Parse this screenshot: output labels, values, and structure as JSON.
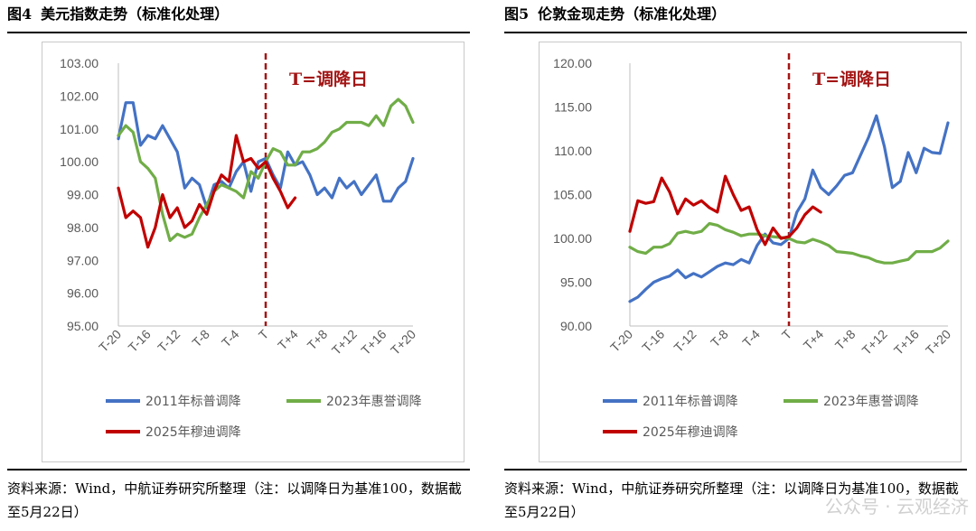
{
  "figures": [
    {
      "title_num": "图4",
      "title_text": "美元指数走势（标准化处理）",
      "source": "资料来源：Wind，中航证券研究所整理（注：以调降日为基准100，数据截至5月22日）",
      "chart_data": {
        "type": "line",
        "ylim": [
          95,
          103
        ],
        "yticks": [
          "95.00",
          "96.00",
          "97.00",
          "98.00",
          "99.00",
          "100.00",
          "101.00",
          "102.00",
          "103.00"
        ],
        "xticks": [
          "T-20",
          "T-16",
          "T-12",
          "T-8",
          "T-4",
          "T",
          "T+4",
          "T+8",
          "T+12",
          "T+16",
          "T+20"
        ],
        "x_range": [
          -20,
          20
        ],
        "vline": {
          "x": 0,
          "label": "T=调降日",
          "color": "#a31515"
        },
        "grid": false,
        "legend_position": "bottom",
        "series": [
          {
            "name": "2011年标普调降",
            "color": "#4472c4",
            "x_start": -20,
            "values": [
              100.7,
              101.8,
              101.8,
              100.5,
              100.8,
              100.7,
              101.1,
              100.7,
              100.3,
              99.2,
              99.5,
              99.3,
              98.6,
              99.3,
              99.4,
              99.2,
              99.7,
              100.0,
              99.1,
              100.0,
              100.1,
              99.6,
              99.2,
              100.3,
              99.9,
              100.0,
              99.6,
              99.0,
              99.2,
              98.9,
              99.5,
              99.2,
              99.4,
              99.0,
              99.3,
              99.6,
              98.8,
              98.8,
              99.2,
              99.4,
              100.1
            ]
          },
          {
            "name": "2023年惠誉调降",
            "color": "#70ad47",
            "x_start": -20,
            "values": [
              100.8,
              101.1,
              100.9,
              100.0,
              99.8,
              99.5,
              98.4,
              97.6,
              97.8,
              97.7,
              97.8,
              98.3,
              98.7,
              99.1,
              99.3,
              99.2,
              99.1,
              98.9,
              99.7,
              99.5,
              100.0,
              100.4,
              100.3,
              99.9,
              99.9,
              100.3,
              100.3,
              100.4,
              100.6,
              100.9,
              101.0,
              101.2,
              101.2,
              101.2,
              101.1,
              101.4,
              101.1,
              101.7,
              101.9,
              101.7,
              101.2
            ]
          },
          {
            "name": "2025年穆迪调降",
            "color": "#c00000",
            "x_start": -20,
            "values": [
              99.2,
              98.3,
              98.5,
              98.3,
              97.4,
              98.0,
              99.0,
              98.3,
              98.6,
              98.0,
              98.2,
              98.7,
              98.4,
              99.1,
              99.6,
              99.4,
              100.8,
              100.0,
              100.1,
              99.8,
              100.0,
              99.5,
              99.1,
              98.6,
              98.9
            ]
          }
        ]
      }
    },
    {
      "title_num": "图5",
      "title_text": "伦敦金现走势（标准化处理）",
      "source": "资料来源：Wind，中航证券研究所整理（注：以调降日为基准100，数据截至5月22日）",
      "watermark": "公众号 · 云观经济",
      "chart_data": {
        "type": "line",
        "ylim": [
          90,
          120
        ],
        "yticks": [
          "90.00",
          "95.00",
          "100.00",
          "105.00",
          "110.00",
          "115.00",
          "120.00"
        ],
        "xticks": [
          "T-20",
          "T-16",
          "T-12",
          "T-8",
          "T-4",
          "T",
          "T+4",
          "T+8",
          "T+12",
          "T+16",
          "T+20"
        ],
        "x_range": [
          -20,
          20
        ],
        "vline": {
          "x": 0,
          "label": "T=调降日",
          "color": "#a31515"
        },
        "grid": false,
        "legend_position": "bottom",
        "series": [
          {
            "name": "2011年标普调降",
            "color": "#4472c4",
            "x_start": -20,
            "values": [
              92.8,
              93.3,
              94.2,
              95.0,
              95.4,
              95.7,
              96.4,
              95.5,
              96.0,
              95.6,
              96.2,
              96.8,
              97.2,
              97.0,
              97.6,
              97.2,
              99.2,
              100.5,
              99.5,
              99.3,
              100.0,
              103.0,
              104.5,
              107.8,
              105.8,
              105.0,
              106.0,
              107.2,
              107.5,
              109.5,
              111.5,
              114.0,
              110.5,
              105.8,
              106.5,
              109.8,
              107.5,
              110.3,
              109.8,
              109.7,
              113.2
            ]
          },
          {
            "name": "2023年惠誉调降",
            "color": "#70ad47",
            "x_start": -20,
            "values": [
              99.0,
              98.5,
              98.3,
              99.0,
              99.0,
              99.4,
              100.6,
              100.8,
              100.6,
              100.8,
              101.7,
              101.5,
              101.0,
              100.7,
              100.3,
              100.5,
              100.5,
              100.3,
              100.2,
              100.1,
              100.0,
              99.6,
              99.5,
              99.9,
              99.6,
              99.2,
              98.5,
              98.4,
              98.3,
              98.0,
              97.8,
              97.4,
              97.2,
              97.2,
              97.4,
              97.6,
              98.5,
              98.5,
              98.5,
              98.9,
              99.7
            ]
          },
          {
            "name": "2025年穆迪调降",
            "color": "#c00000",
            "x_start": -20,
            "values": [
              100.8,
              104.3,
              104.0,
              104.2,
              106.9,
              105.3,
              102.8,
              104.5,
              103.8,
              104.3,
              103.5,
              103.0,
              107.1,
              105.0,
              103.2,
              103.6,
              101.0,
              99.3,
              101.2,
              100.0,
              100.2,
              101.2,
              102.7,
              103.6,
              103.0
            ]
          }
        ]
      }
    }
  ]
}
